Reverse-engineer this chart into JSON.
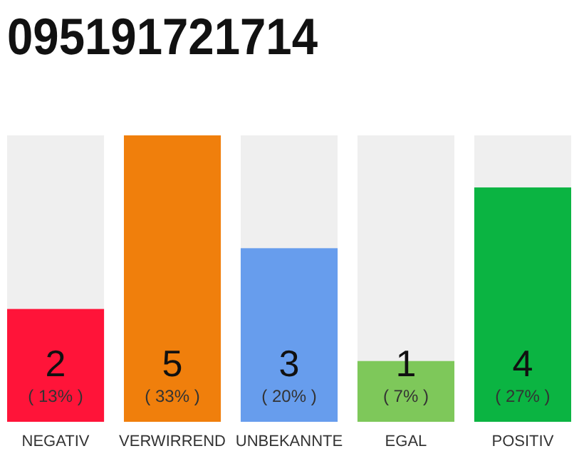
{
  "chart_data": {
    "type": "bar",
    "title": "095191721714",
    "categories": [
      "NEGATIV",
      "VERWIRREND",
      "UNBEKANNTE",
      "EGAL",
      "POSITIV"
    ],
    "values": [
      13,
      33,
      20,
      7,
      27
    ],
    "colors": [
      "#ff1439",
      "#f07f0c",
      "#679ded",
      "#7ec85a",
      "#0bb442"
    ],
    "value_labels": [
      "( 13% )",
      "( 33% )",
      "( 20% )",
      "( 7% )",
      "( 27% )"
    ],
    "annotations": [
      "2",
      "5",
      "3",
      "1",
      "4"
    ],
    "tick_labels": "x"
  }
}
